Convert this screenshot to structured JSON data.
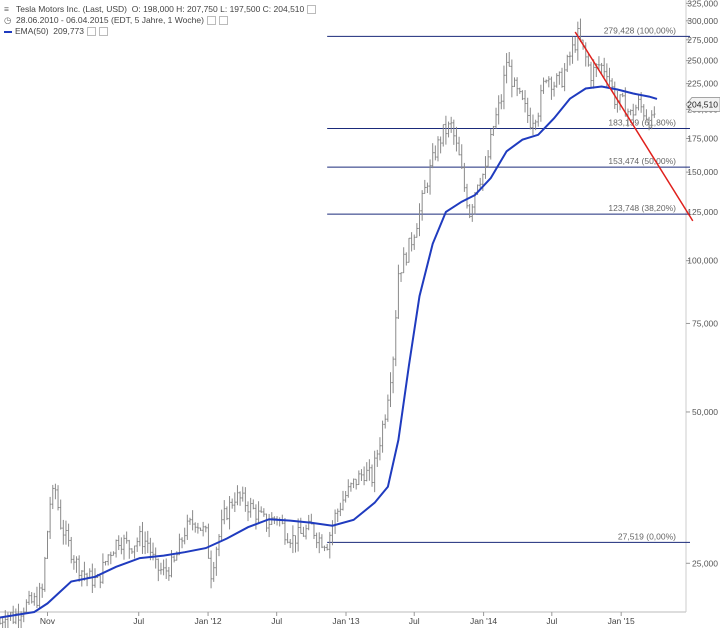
{
  "header": {
    "instrument": "Tesla Motors Inc. (Last, USD)",
    "ohlc": "O: 198,000  H: 207,750  L: 197,500  C: 204,510",
    "period": "28.06.2010 - 06.04.2015 (EDT, 5 Jahre, 1 Woche)",
    "ema_label": "EMA(50)",
    "ema_value": "209,773",
    "chart_icon": "chart-icon",
    "clock_icon": "clock-icon"
  },
  "chart_data": {
    "type": "line",
    "scale": "log",
    "title": "",
    "xlabel": "",
    "ylabel": "",
    "ylim": [
      20,
      330
    ],
    "xlim": [
      "2010-06-28",
      "2015-06-22"
    ],
    "grid": false,
    "legend": "top-left",
    "colors": {
      "price": "#8a8a8a",
      "ema": "#1f3bbf",
      "fib": "#1a2a7a",
      "trend": "#e0201c",
      "last_badge": "#f2f2f2"
    },
    "y_ticks": [
      {
        "value": 325,
        "label": "325,000"
      },
      {
        "value": 300,
        "label": "300,000"
      },
      {
        "value": 275,
        "label": "275,000"
      },
      {
        "value": 250,
        "label": "250,000"
      },
      {
        "value": 225,
        "label": "225,000"
      },
      {
        "value": 200,
        "label": "200,000"
      },
      {
        "value": 175,
        "label": "175,000"
      },
      {
        "value": 150,
        "label": "150,000"
      },
      {
        "value": 125,
        "label": "125,000"
      },
      {
        "value": 100,
        "label": "100,000"
      },
      {
        "value": 75,
        "label": "75,000"
      },
      {
        "value": 50,
        "label": "50,000"
      },
      {
        "value": 25,
        "label": "25,000"
      }
    ],
    "x_ticks": [
      {
        "date": "2010-11-01",
        "label": "Nov"
      },
      {
        "date": "2011-07-01",
        "label": "Jul"
      },
      {
        "date": "2012-01-01",
        "label": "Jan '12"
      },
      {
        "date": "2012-07-01",
        "label": "Jul"
      },
      {
        "date": "2013-01-01",
        "label": "Jan '13"
      },
      {
        "date": "2013-07-01",
        "label": "Jul"
      },
      {
        "date": "2014-01-01",
        "label": "Jan '14"
      },
      {
        "date": "2014-07-01",
        "label": "Jul"
      },
      {
        "date": "2015-01-01",
        "label": "Jan '15"
      }
    ],
    "last_price": {
      "value": 204.51,
      "label": "204,510"
    },
    "fib_levels": [
      {
        "value": 279.428,
        "label": "279,428 (100,00%)",
        "from": "2012-11-12"
      },
      {
        "value": 183.199,
        "label": "183,199 (61,80%)",
        "from": "2012-11-12"
      },
      {
        "value": 153.474,
        "label": "153,474 (50,00%)",
        "from": "2012-11-12"
      },
      {
        "value": 123.748,
        "label": "123,748 (38,20%)",
        "from": "2012-11-12"
      },
      {
        "value": 27.519,
        "label": "27,519 (0,00%)",
        "from": "2012-11-12"
      }
    ],
    "trendline": {
      "from": {
        "date": "2014-09-01",
        "value": 285
      },
      "to": {
        "date": "2015-07-10",
        "value": 120
      }
    },
    "series": [
      {
        "name": "Tesla Motors Inc.",
        "points": [
          [
            "2010-06-28",
            19
          ],
          [
            "2010-07-12",
            20
          ],
          [
            "2010-08-02",
            19.5
          ],
          [
            "2010-08-30",
            20.5
          ],
          [
            "2010-09-27",
            21
          ],
          [
            "2010-10-18",
            22
          ],
          [
            "2010-11-01",
            29
          ],
          [
            "2010-11-08",
            33
          ],
          [
            "2010-11-22",
            35
          ],
          [
            "2010-12-06",
            30
          ],
          [
            "2010-12-20",
            28
          ],
          [
            "2011-01-17",
            25
          ],
          [
            "2011-02-14",
            23.5
          ],
          [
            "2011-03-14",
            23
          ],
          [
            "2011-04-11",
            26
          ],
          [
            "2011-05-09",
            28
          ],
          [
            "2011-06-06",
            27
          ],
          [
            "2011-07-04",
            28
          ],
          [
            "2011-07-25",
            27.5
          ],
          [
            "2011-08-15",
            24.5
          ],
          [
            "2011-09-05",
            24
          ],
          [
            "2011-10-03",
            25
          ],
          [
            "2011-10-31",
            29
          ],
          [
            "2011-11-28",
            30.5
          ],
          [
            "2011-12-26",
            28.5
          ],
          [
            "2012-01-09",
            24
          ],
          [
            "2012-01-23",
            27
          ],
          [
            "2012-02-13",
            31
          ],
          [
            "2012-03-12",
            34
          ],
          [
            "2012-04-09",
            33
          ],
          [
            "2012-05-07",
            31.5
          ],
          [
            "2012-06-04",
            30
          ],
          [
            "2012-07-02",
            31
          ],
          [
            "2012-07-23",
            29
          ],
          [
            "2012-08-13",
            28
          ],
          [
            "2012-09-03",
            28.5
          ],
          [
            "2012-10-01",
            29.5
          ],
          [
            "2012-10-22",
            28
          ],
          [
            "2012-11-12",
            27.5
          ],
          [
            "2012-12-03",
            31
          ],
          [
            "2012-12-24",
            33.5
          ],
          [
            "2013-01-21",
            36
          ],
          [
            "2013-02-18",
            38
          ],
          [
            "2013-03-11",
            37
          ],
          [
            "2013-04-01",
            44
          ],
          [
            "2013-04-15",
            50
          ],
          [
            "2013-05-06",
            65
          ],
          [
            "2013-05-20",
            95
          ],
          [
            "2013-06-03",
            100
          ],
          [
            "2013-06-24",
            110
          ],
          [
            "2013-07-15",
            125
          ],
          [
            "2013-08-05",
            145
          ],
          [
            "2013-08-26",
            165
          ],
          [
            "2013-09-16",
            180
          ],
          [
            "2013-10-07",
            185
          ],
          [
            "2013-10-28",
            160
          ],
          [
            "2013-11-11",
            140
          ],
          [
            "2013-11-25",
            125
          ],
          [
            "2013-12-16",
            145
          ],
          [
            "2014-01-06",
            150
          ],
          [
            "2014-01-27",
            185
          ],
          [
            "2014-02-17",
            210
          ],
          [
            "2014-03-03",
            250
          ],
          [
            "2014-03-24",
            220
          ],
          [
            "2014-04-14",
            205
          ],
          [
            "2014-05-05",
            190
          ],
          [
            "2014-05-26",
            200
          ],
          [
            "2014-06-16",
            235
          ],
          [
            "2014-07-07",
            225
          ],
          [
            "2014-07-28",
            230
          ],
          [
            "2014-08-18",
            255
          ],
          [
            "2014-09-08",
            280
          ],
          [
            "2014-09-22",
            262
          ],
          [
            "2014-10-13",
            235
          ],
          [
            "2014-11-03",
            245
          ],
          [
            "2014-11-24",
            240
          ],
          [
            "2014-12-15",
            210
          ],
          [
            "2015-01-05",
            205
          ],
          [
            "2015-01-26",
            195
          ],
          [
            "2015-02-16",
            205
          ],
          [
            "2015-03-09",
            195
          ],
          [
            "2015-03-23",
            188
          ],
          [
            "2015-04-06",
            204.51
          ]
        ]
      },
      {
        "name": "EMA(50)",
        "points": [
          [
            "2010-06-28",
            19.5
          ],
          [
            "2010-09-27",
            20
          ],
          [
            "2010-11-01",
            20.8
          ],
          [
            "2011-01-03",
            23
          ],
          [
            "2011-03-07",
            23.5
          ],
          [
            "2011-05-02",
            24.6
          ],
          [
            "2011-07-04",
            25.6
          ],
          [
            "2011-09-05",
            25.9
          ],
          [
            "2011-10-31",
            26.3
          ],
          [
            "2011-12-26",
            26.8
          ],
          [
            "2012-02-20",
            28
          ],
          [
            "2012-04-16",
            29.5
          ],
          [
            "2012-06-11",
            30.6
          ],
          [
            "2012-08-06",
            30.4
          ],
          [
            "2012-10-01",
            30.1
          ],
          [
            "2012-11-26",
            29.7
          ],
          [
            "2013-01-21",
            30.5
          ],
          [
            "2013-03-18",
            33
          ],
          [
            "2013-04-22",
            35.5
          ],
          [
            "2013-05-20",
            44
          ],
          [
            "2013-06-17",
            62
          ],
          [
            "2013-07-15",
            85
          ],
          [
            "2013-08-19",
            108
          ],
          [
            "2013-09-23",
            125
          ],
          [
            "2013-11-04",
            131
          ],
          [
            "2013-12-09",
            135
          ],
          [
            "2014-01-20",
            146
          ],
          [
            "2014-03-03",
            165
          ],
          [
            "2014-04-14",
            174
          ],
          [
            "2014-05-26",
            178
          ],
          [
            "2014-07-07",
            192
          ],
          [
            "2014-08-18",
            210
          ],
          [
            "2014-09-29",
            220
          ],
          [
            "2014-11-10",
            222
          ],
          [
            "2014-12-22",
            219
          ],
          [
            "2015-02-02",
            215
          ],
          [
            "2015-03-16",
            212
          ],
          [
            "2015-04-06",
            209.773
          ]
        ]
      }
    ]
  }
}
